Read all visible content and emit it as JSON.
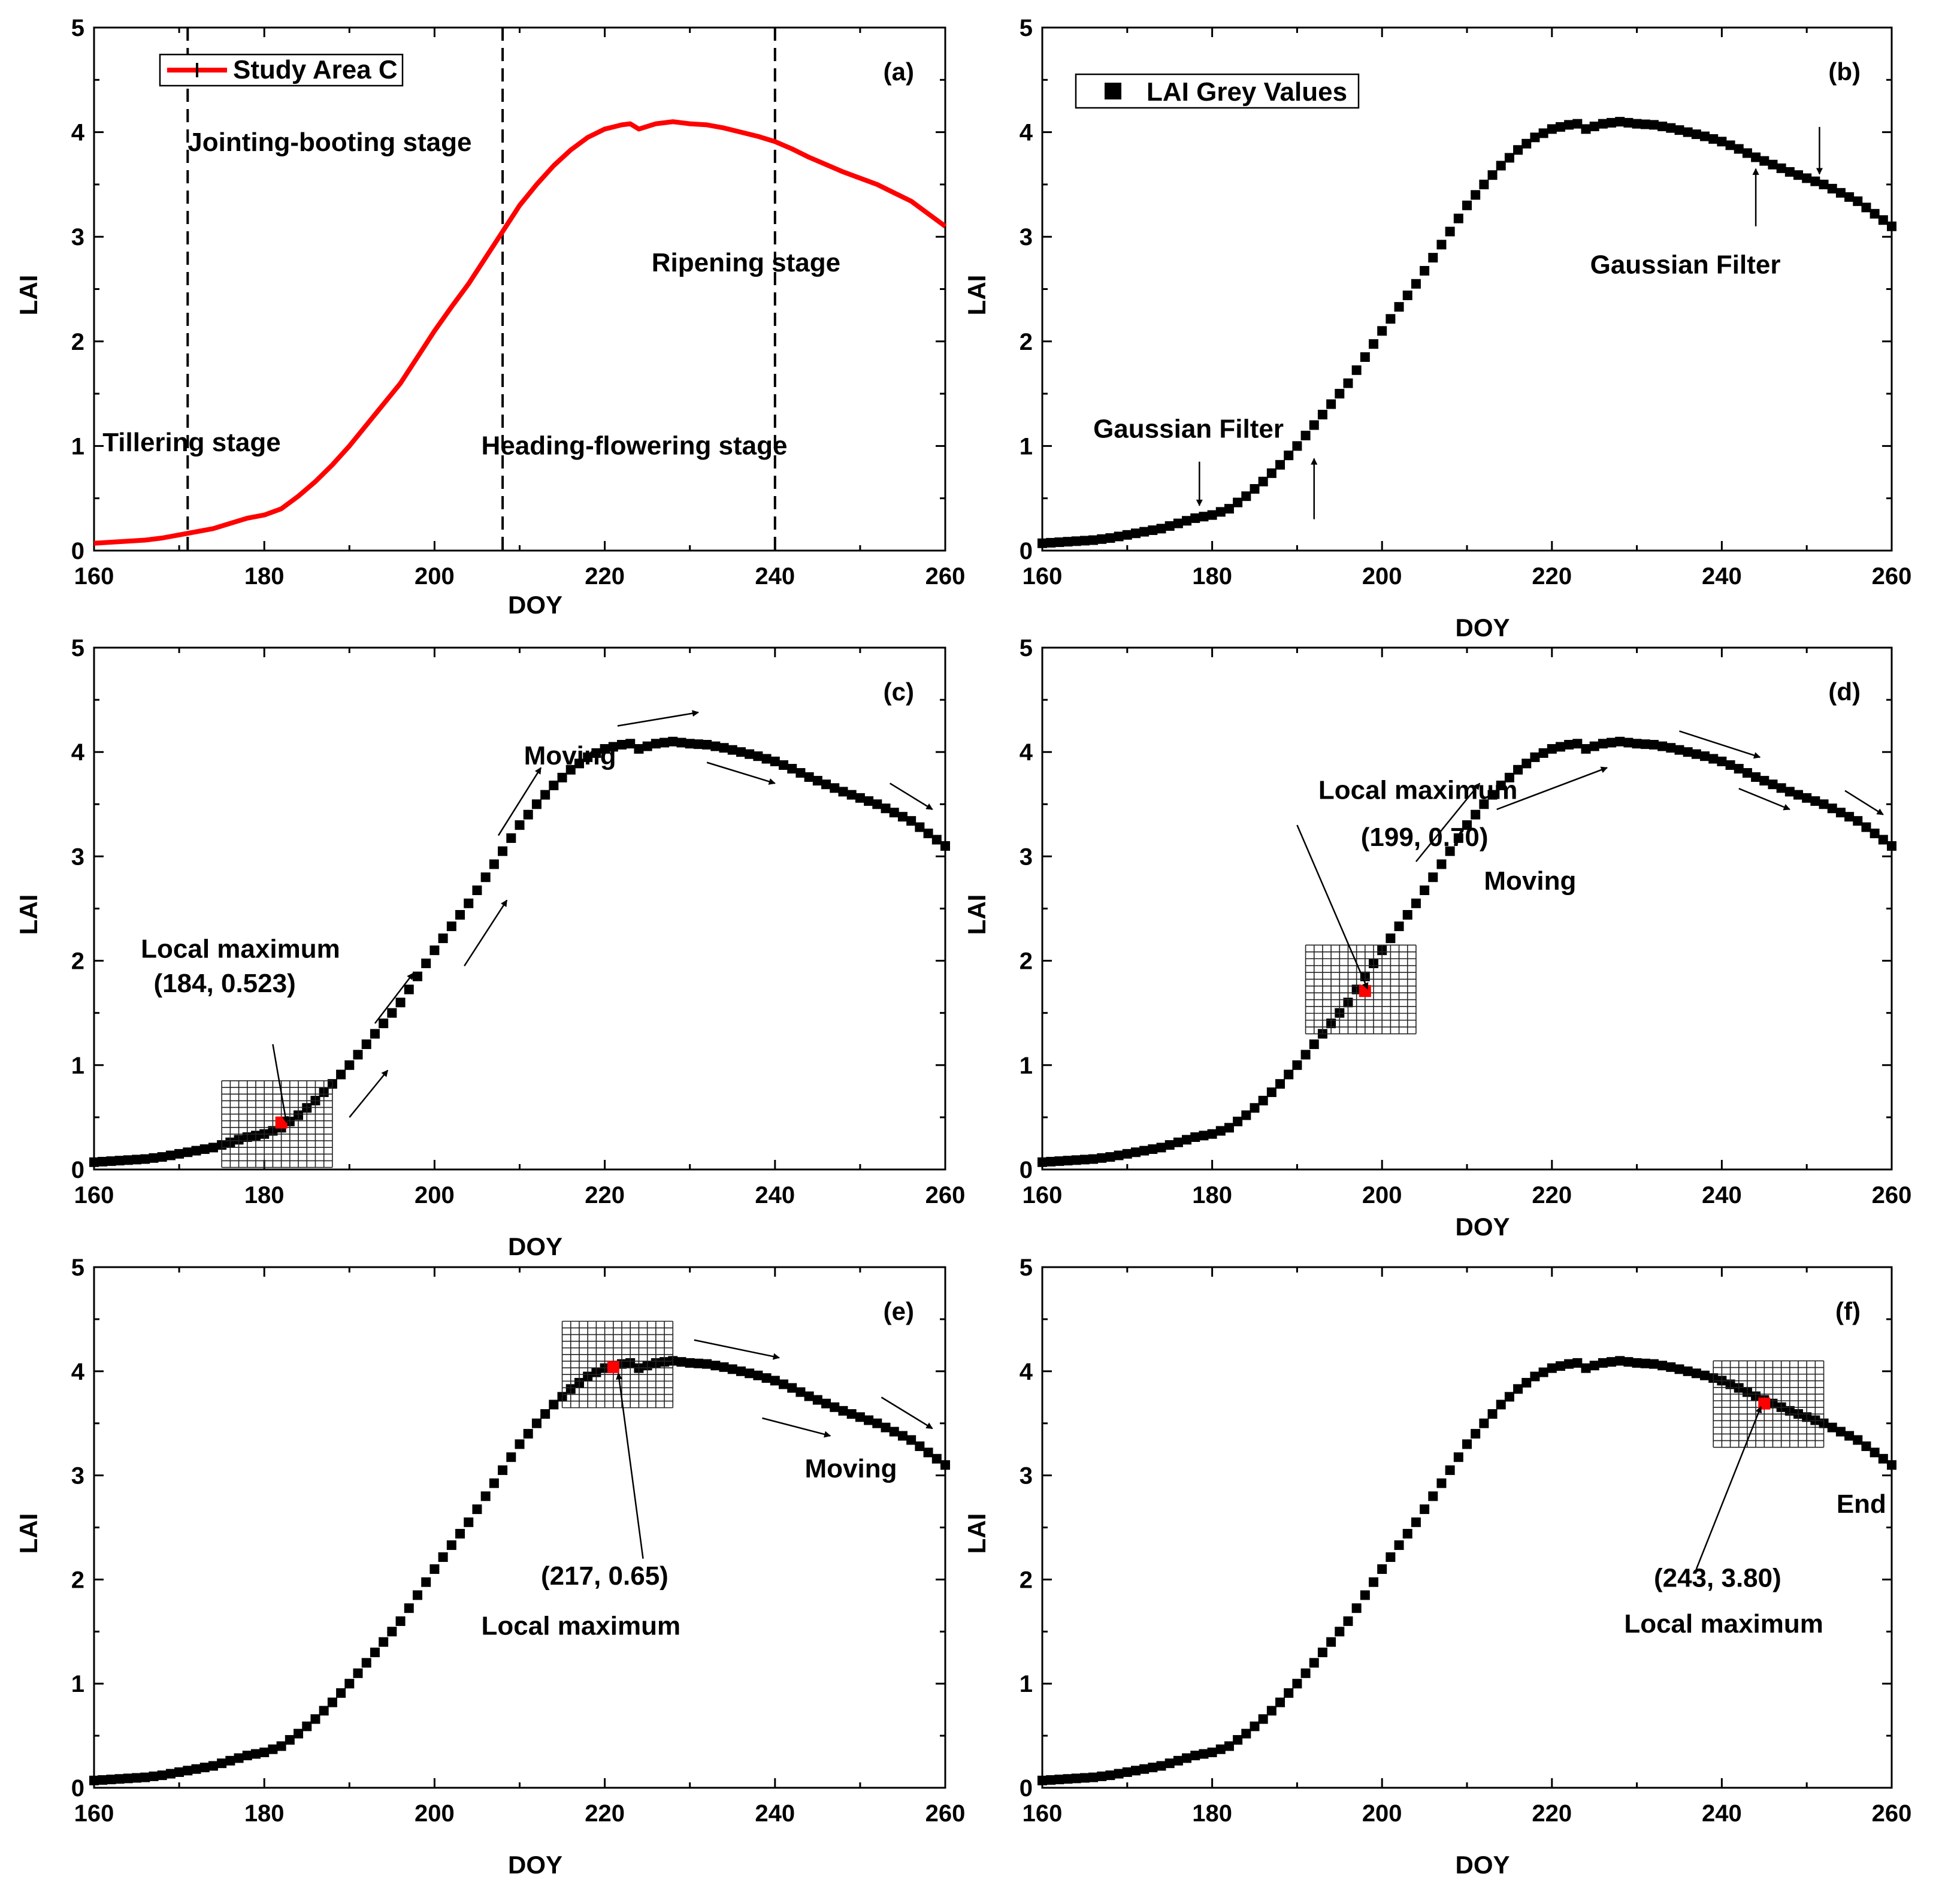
{
  "chart_data": [
    {
      "panel": "(a)",
      "type": "line",
      "title": "",
      "xlabel": "DOY",
      "ylabel": "LAI",
      "xlim": [
        160,
        260
      ],
      "ylim": [
        0,
        5
      ],
      "xticks": [
        160,
        180,
        200,
        220,
        240,
        260
      ],
      "yticks": [
        0,
        1,
        2,
        3,
        4,
        5
      ],
      "legend": {
        "label": "Study Area C",
        "position": "top-left"
      },
      "series": [
        {
          "name": "Study Area C",
          "style": "line",
          "color": "#ff0000",
          "x": [
            160,
            162,
            164,
            166,
            168,
            170,
            172,
            174,
            176,
            178,
            180,
            182,
            184,
            186,
            188,
            190,
            192,
            194,
            196,
            198,
            200,
            202,
            204,
            206,
            208,
            210,
            212,
            214,
            216,
            218,
            220,
            222,
            223,
            224,
            226,
            228,
            230,
            232,
            234,
            236,
            238,
            240,
            242,
            244,
            246,
            248,
            250,
            252,
            254,
            256,
            258,
            260
          ],
          "y": [
            0.07,
            0.08,
            0.09,
            0.1,
            0.12,
            0.15,
            0.18,
            0.21,
            0.26,
            0.31,
            0.34,
            0.4,
            0.52,
            0.66,
            0.82,
            1.0,
            1.2,
            1.4,
            1.6,
            1.85,
            2.1,
            2.33,
            2.55,
            2.8,
            3.05,
            3.3,
            3.5,
            3.68,
            3.83,
            3.95,
            4.03,
            4.07,
            4.08,
            4.03,
            4.08,
            4.1,
            4.08,
            4.07,
            4.04,
            4.0,
            3.96,
            3.91,
            3.84,
            3.76,
            3.69,
            3.62,
            3.56,
            3.5,
            3.42,
            3.34,
            3.22,
            3.1
          ]
        }
      ],
      "vlines": [
        171,
        208,
        240
      ],
      "annotations": [
        {
          "text": "Jointing-booting stage",
          "x": 171,
          "y": 3.82
        },
        {
          "text": "Ripening stage",
          "x": 225.5,
          "y": 2.67
        },
        {
          "text": "Tillering stage",
          "x": 161,
          "y": 0.95
        },
        {
          "text": "Heading-flowering stage",
          "x": 205.5,
          "y": 0.92
        }
      ]
    },
    {
      "panel": "(b)",
      "type": "scatter",
      "title": "",
      "xlabel": "DOY",
      "ylabel": "LAI",
      "xlim": [
        160,
        260
      ],
      "ylim": [
        0,
        5
      ],
      "xticks": [
        160,
        180,
        200,
        220,
        240,
        260
      ],
      "yticks": [
        0,
        1,
        2,
        3,
        4,
        5
      ],
      "legend": {
        "label": "LAI Grey Values",
        "position": "top-left"
      },
      "series": [
        {
          "name": "LAI Grey Values",
          "style": "markers",
          "color": "#000000",
          "source": "Study Area C",
          "x_step": 1
        }
      ],
      "annotations": [
        {
          "text": "Gaussian Filter",
          "x": 224.5,
          "y": 2.65
        },
        {
          "text": "Gaussian Filter",
          "x": 166,
          "y": 1.08
        }
      ],
      "arrows": [
        {
          "from": [
            244,
            3.1
          ],
          "to": [
            244,
            3.65
          ]
        },
        {
          "from": [
            251.5,
            4.05
          ],
          "to": [
            251.5,
            3.6
          ]
        },
        {
          "from": [
            178.5,
            0.85
          ],
          "to": [
            178.5,
            0.43
          ]
        },
        {
          "from": [
            192,
            0.3
          ],
          "to": [
            192,
            0.88
          ]
        }
      ]
    },
    {
      "panel": "(c)",
      "type": "scatter",
      "title": "",
      "xlabel": "DOY",
      "ylabel": "LAI",
      "xlim": [
        160,
        260
      ],
      "ylim": [
        0,
        5
      ],
      "xticks": [
        160,
        180,
        200,
        220,
        240,
        260
      ],
      "yticks": [
        0,
        1,
        2,
        3,
        4,
        5
      ],
      "series": [
        {
          "name": "LAI Grey Values",
          "style": "markers",
          "color": "#000000",
          "source": "Study Area C",
          "x_step": 1
        }
      ],
      "window": {
        "x": [
          175,
          188
        ],
        "y": [
          0.02,
          0.85
        ],
        "center": [
          182,
          0.45
        ]
      },
      "annotations": [
        {
          "text": "Moving",
          "x": 210.5,
          "y": 3.88
        },
        {
          "text": "Local maximum",
          "x": 165.5,
          "y": 2.03
        },
        {
          "text": "(184, 0.523)",
          "x": 167,
          "y": 1.7
        }
      ],
      "arrows": [
        {
          "from": [
            181,
            1.2
          ],
          "to": [
            182.6,
            0.45
          ]
        },
        {
          "from": [
            190,
            0.5
          ],
          "to": [
            194.5,
            0.95
          ]
        },
        {
          "from": [
            193,
            1.4
          ],
          "to": [
            197.5,
            1.88
          ]
        },
        {
          "from": [
            203.5,
            1.95
          ],
          "to": [
            208.5,
            2.58
          ]
        },
        {
          "from": [
            207.5,
            3.2
          ],
          "to": [
            212.5,
            3.85
          ]
        },
        {
          "from": [
            221.5,
            4.25
          ],
          "to": [
            231,
            4.38
          ]
        },
        {
          "from": [
            232,
            3.9
          ],
          "to": [
            240,
            3.7
          ]
        },
        {
          "from": [
            253.5,
            3.7
          ],
          "to": [
            258.5,
            3.45
          ]
        }
      ]
    },
    {
      "panel": "(d)",
      "type": "scatter",
      "title": "",
      "xlabel": "DOY",
      "ylabel": "LAI",
      "xlim": [
        160,
        260
      ],
      "ylim": [
        0,
        5
      ],
      "xticks": [
        160,
        180,
        200,
        220,
        240,
        260
      ],
      "yticks": [
        0,
        1,
        2,
        3,
        4,
        5
      ],
      "series": [
        {
          "name": "LAI Grey Values",
          "style": "markers",
          "color": "#000000",
          "source": "Study Area C",
          "x_step": 1
        }
      ],
      "window": {
        "x": [
          191,
          204
        ],
        "y": [
          1.3,
          2.15
        ],
        "center": [
          198,
          1.71
        ]
      },
      "annotations": [
        {
          "text": "Local maximum",
          "x": 192.5,
          "y": 3.55
        },
        {
          "text": "(199, 0.70)",
          "x": 197.5,
          "y": 3.1
        },
        {
          "text": "Moving",
          "x": 212,
          "y": 2.68
        }
      ],
      "arrows": [
        {
          "from": [
            190,
            3.3
          ],
          "to": [
            198.3,
            1.73
          ]
        },
        {
          "from": [
            204,
            2.95
          ],
          "to": [
            211.5,
            3.7
          ]
        },
        {
          "from": [
            213.5,
            3.45
          ],
          "to": [
            226.5,
            3.85
          ]
        },
        {
          "from": [
            235,
            4.2
          ],
          "to": [
            244.5,
            3.95
          ]
        },
        {
          "from": [
            242,
            3.65
          ],
          "to": [
            248,
            3.45
          ]
        },
        {
          "from": [
            254.5,
            3.63
          ],
          "to": [
            259,
            3.4
          ]
        }
      ]
    },
    {
      "panel": "(e)",
      "type": "scatter",
      "title": "",
      "xlabel": "DOY",
      "ylabel": "LAI",
      "xlim": [
        160,
        260
      ],
      "ylim": [
        0,
        5
      ],
      "xticks": [
        160,
        180,
        200,
        220,
        240,
        260
      ],
      "yticks": [
        0,
        1,
        2,
        3,
        4,
        5
      ],
      "series": [
        {
          "name": "LAI Grey Values",
          "style": "markers",
          "color": "#000000",
          "source": "Study Area C",
          "x_step": 1
        }
      ],
      "window": {
        "x": [
          215,
          228
        ],
        "y": [
          3.65,
          4.48
        ],
        "center": [
          221,
          4.04
        ]
      },
      "annotations": [
        {
          "text": "Moving",
          "x": 243.5,
          "y": 2.98
        },
        {
          "text": "(217, 0.65)",
          "x": 212.5,
          "y": 1.95
        },
        {
          "text": "Local maximum",
          "x": 205.5,
          "y": 1.47
        }
      ],
      "arrows": [
        {
          "from": [
            224.5,
            2.2
          ],
          "to": [
            221.6,
            3.98
          ]
        },
        {
          "from": [
            230.5,
            4.3
          ],
          "to": [
            240.5,
            4.13
          ]
        },
        {
          "from": [
            238.5,
            3.55
          ],
          "to": [
            246.5,
            3.38
          ]
        },
        {
          "from": [
            252.5,
            3.75
          ],
          "to": [
            258.5,
            3.45
          ]
        }
      ]
    },
    {
      "panel": "(f)",
      "type": "scatter",
      "title": "",
      "xlabel": "DOY",
      "ylabel": "LAI",
      "xlim": [
        160,
        260
      ],
      "ylim": [
        0,
        5
      ],
      "xticks": [
        160,
        180,
        200,
        220,
        240,
        260
      ],
      "yticks": [
        0,
        1,
        2,
        3,
        4,
        5
      ],
      "series": [
        {
          "name": "LAI Grey Values",
          "style": "markers",
          "color": "#000000",
          "source": "Study Area C",
          "x_step": 1
        }
      ],
      "window": {
        "x": [
          239,
          252
        ],
        "y": [
          3.27,
          4.1
        ],
        "center": [
          245,
          3.69
        ]
      },
      "annotations": [
        {
          "text": "End",
          "x": 253.5,
          "y": 2.64
        },
        {
          "text": "(243, 3.80)",
          "x": 232,
          "y": 1.93
        },
        {
          "text": "Local maximum",
          "x": 228.5,
          "y": 1.49
        }
      ],
      "arrows": [
        {
          "from": [
            237,
            2.1
          ],
          "to": [
            244.6,
            3.66
          ]
        }
      ]
    }
  ],
  "colors": {
    "line": "#ff0000",
    "marker": "#000000",
    "highlight": "#ff0000",
    "grid_window": "#222222"
  }
}
